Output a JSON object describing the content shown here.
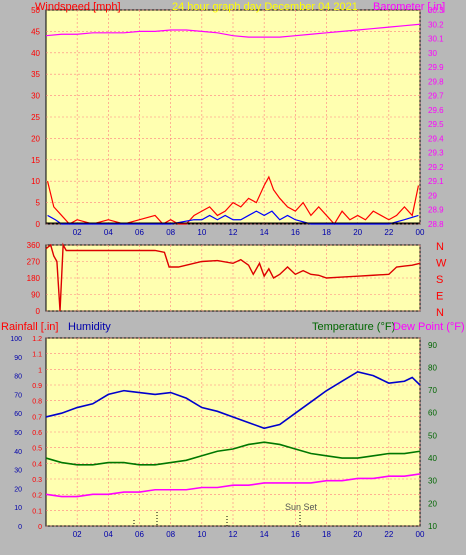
{
  "header": {
    "left_label": "Windspeed [mph]",
    "center_label": "24 hour graph day   December 04 2021",
    "right_label": "Barometer [.in]"
  },
  "bottom_header": {
    "rainfall_label": "Rainfall [.in]",
    "humidity_label": "Humidity",
    "temperature_label": "Temperature (°F)",
    "dewpoint_label": "Dew Point (°F)"
  },
  "colors": {
    "background": "#b8b8b8",
    "panel": "#ffffb0",
    "wind": "#ff0000",
    "gust_blue": "#0000ff",
    "barometer": "#ff00ff",
    "direction": "#dd0000",
    "humidity": "#0000cc",
    "temperature": "#007700",
    "dewpoint": "#ff00ff",
    "label_red": "#ff0000",
    "label_yellow": "#ffff00",
    "label_blue": "#0000aa",
    "label_green": "#006600"
  },
  "annotation": {
    "sunset": "Sun Set"
  },
  "chart_data": [
    {
      "type": "line",
      "title": "24 hour graph day   December 04 2021",
      "x_ticks": [
        "02",
        "04",
        "06",
        "08",
        "10",
        "12",
        "14",
        "16",
        "18",
        "20",
        "22",
        "00"
      ],
      "xlim_hours": [
        0,
        24
      ],
      "left_axis": {
        "label": "Windspeed [mph]",
        "ylim": [
          0,
          50
        ],
        "ticks": [
          "0",
          "5",
          "10",
          "15",
          "20",
          "25",
          "30",
          "35",
          "40",
          "45",
          "50"
        ]
      },
      "right_axis": {
        "label": "Barometer [.in]",
        "ylim": [
          28.8,
          30.3
        ],
        "ticks": [
          "28.8",
          "28.9",
          "29",
          "29.1",
          "29.2",
          "29.3",
          "29.4",
          "29.5",
          "29.6",
          "29.7",
          "29.8",
          "29.9",
          "30",
          "30.1",
          "30.2",
          "30.3"
        ]
      },
      "series": [
        {
          "axis": "right",
          "x": [
            0,
            1,
            2,
            3,
            4,
            5,
            6,
            7,
            8,
            9,
            10,
            11,
            12,
            13,
            14,
            15,
            16,
            17,
            18,
            19,
            20,
            21,
            22,
            23,
            24
          ],
          "values": [
            30.12,
            30.13,
            30.13,
            30.14,
            30.14,
            30.14,
            30.15,
            30.15,
            30.16,
            30.16,
            30.15,
            30.14,
            30.12,
            30.11,
            30.11,
            30.11,
            30.12,
            30.13,
            30.14,
            30.15,
            30.16,
            30.17,
            30.18,
            30.19,
            30.2
          ]
        },
        {
          "axis": "left",
          "x": [
            0.1,
            0.5,
            1,
            1.5,
            2,
            3,
            4,
            5,
            6,
            7,
            7.5,
            8,
            8.5,
            9,
            9.5,
            10,
            10.5,
            11,
            11.5,
            12,
            12.5,
            13,
            13.5,
            14,
            14.3,
            14.6,
            15,
            15.5,
            16,
            16.5,
            17,
            17.5,
            18,
            18.5,
            19,
            19.5,
            20,
            20.5,
            21,
            21.5,
            22,
            22.5,
            23,
            23.5,
            23.9
          ],
          "values": [
            10,
            4,
            2,
            0,
            1,
            0,
            1,
            0,
            1,
            2,
            0,
            1,
            0,
            0,
            2,
            3,
            4,
            2,
            3,
            5,
            4,
            6,
            5,
            9,
            11,
            8,
            6,
            4,
            3,
            5,
            2,
            4,
            2,
            0,
            3,
            1,
            2,
            1,
            3,
            2,
            1,
            2,
            4,
            2,
            9
          ]
        },
        {
          "axis": "left",
          "x": [
            0.1,
            0.6,
            1,
            2,
            4,
            6,
            8,
            9.5,
            10,
            10.5,
            11,
            11.5,
            12,
            12.5,
            13,
            13.5,
            14,
            14.5,
            15,
            15.5,
            16,
            17,
            18,
            19,
            20,
            21,
            22,
            23,
            23.9
          ],
          "values": [
            2,
            1,
            0,
            0,
            0,
            0,
            0,
            1,
            1,
            2,
            1,
            2,
            1,
            1,
            2,
            3,
            2,
            3,
            1,
            2,
            1,
            0,
            0,
            0,
            0,
            0,
            0,
            1,
            2
          ]
        }
      ]
    },
    {
      "type": "line",
      "left_axis": {
        "ylim": [
          0,
          360
        ],
        "ticks": [
          "0",
          "90",
          "180",
          "270",
          "360"
        ]
      },
      "right_axis": {
        "ticks": [
          "N",
          "W",
          "S",
          "E",
          "N"
        ]
      },
      "series": [
        {
          "x": [
            0,
            0.3,
            0.5,
            0.7,
            0.9,
            1.1,
            1.3,
            2,
            3,
            4,
            5,
            6,
            7,
            7.6,
            7.9,
            8.5,
            9,
            10,
            11,
            12,
            12.5,
            13,
            13.3,
            13.7,
            14,
            14.3,
            14.6,
            15,
            15.5,
            16,
            16.5,
            17,
            17.5,
            18,
            19,
            20,
            21,
            22,
            22.5,
            23,
            23.5,
            24
          ],
          "values": [
            340,
            360,
            300,
            270,
            0,
            360,
            330,
            330,
            330,
            330,
            330,
            330,
            330,
            320,
            240,
            240,
            250,
            270,
            275,
            260,
            280,
            250,
            200,
            260,
            190,
            230,
            180,
            200,
            240,
            200,
            220,
            200,
            195,
            180,
            185,
            190,
            195,
            200,
            240,
            245,
            250,
            260
          ]
        }
      ]
    },
    {
      "type": "line",
      "left_axis_rain": {
        "label": "Rainfall [.in]",
        "ylim": [
          0,
          1.2
        ],
        "ticks": [
          "0",
          "0.1",
          "0.2",
          "0.3",
          "0.4",
          "0.5",
          "0.6",
          "0.7",
          "0.8",
          "0.9",
          "1",
          "1.1",
          "1.2"
        ]
      },
      "left_axis_humidity": {
        "label": "Humidity",
        "ylim": [
          0,
          100
        ],
        "ticks": [
          "0",
          "10",
          "20",
          "30",
          "40",
          "50",
          "60",
          "70",
          "80",
          "90",
          "100"
        ]
      },
      "right_axis": {
        "label": "Temperature (°F)",
        "label2": "Dew Point (°F)",
        "ylim": [
          10,
          93
        ],
        "ticks": [
          "10",
          "20",
          "30",
          "40",
          "50",
          "60",
          "70",
          "80",
          "90"
        ]
      },
      "series": [
        {
          "axis": "humidity",
          "x": [
            0,
            1,
            2,
            3,
            4,
            5,
            6,
            7,
            8,
            9,
            10,
            11,
            12,
            13,
            14,
            15,
            16,
            17,
            18,
            19,
            20,
            21,
            22,
            23,
            23.5,
            24
          ],
          "values": [
            58,
            60,
            63,
            65,
            70,
            72,
            71,
            70,
            71,
            68,
            63,
            61,
            58,
            55,
            52,
            54,
            60,
            66,
            72,
            77,
            82,
            80,
            76,
            77,
            79,
            75
          ]
        },
        {
          "axis": "temp",
          "x": [
            0,
            1,
            2,
            3,
            4,
            5,
            6,
            7,
            8,
            9,
            10,
            11,
            12,
            13,
            14,
            15,
            16,
            17,
            18,
            19,
            20,
            21,
            22,
            23,
            24
          ],
          "values": [
            40,
            38,
            37,
            37,
            38,
            38,
            37,
            37,
            38,
            39,
            41,
            43,
            44,
            46,
            47,
            46,
            44,
            42,
            41,
            40,
            40,
            41,
            42,
            42,
            43
          ]
        },
        {
          "axis": "temp",
          "x": [
            0,
            1,
            2,
            3,
            4,
            5,
            6,
            7,
            8,
            9,
            10,
            11,
            12,
            13,
            14,
            15,
            16,
            17,
            18,
            19,
            20,
            21,
            22,
            23,
            24
          ],
          "values": [
            24,
            23,
            23,
            24,
            24,
            25,
            25,
            26,
            26,
            26,
            27,
            27,
            28,
            28,
            29,
            29,
            29,
            29,
            30,
            30,
            31,
            31,
            32,
            32,
            33
          ]
        }
      ]
    }
  ]
}
